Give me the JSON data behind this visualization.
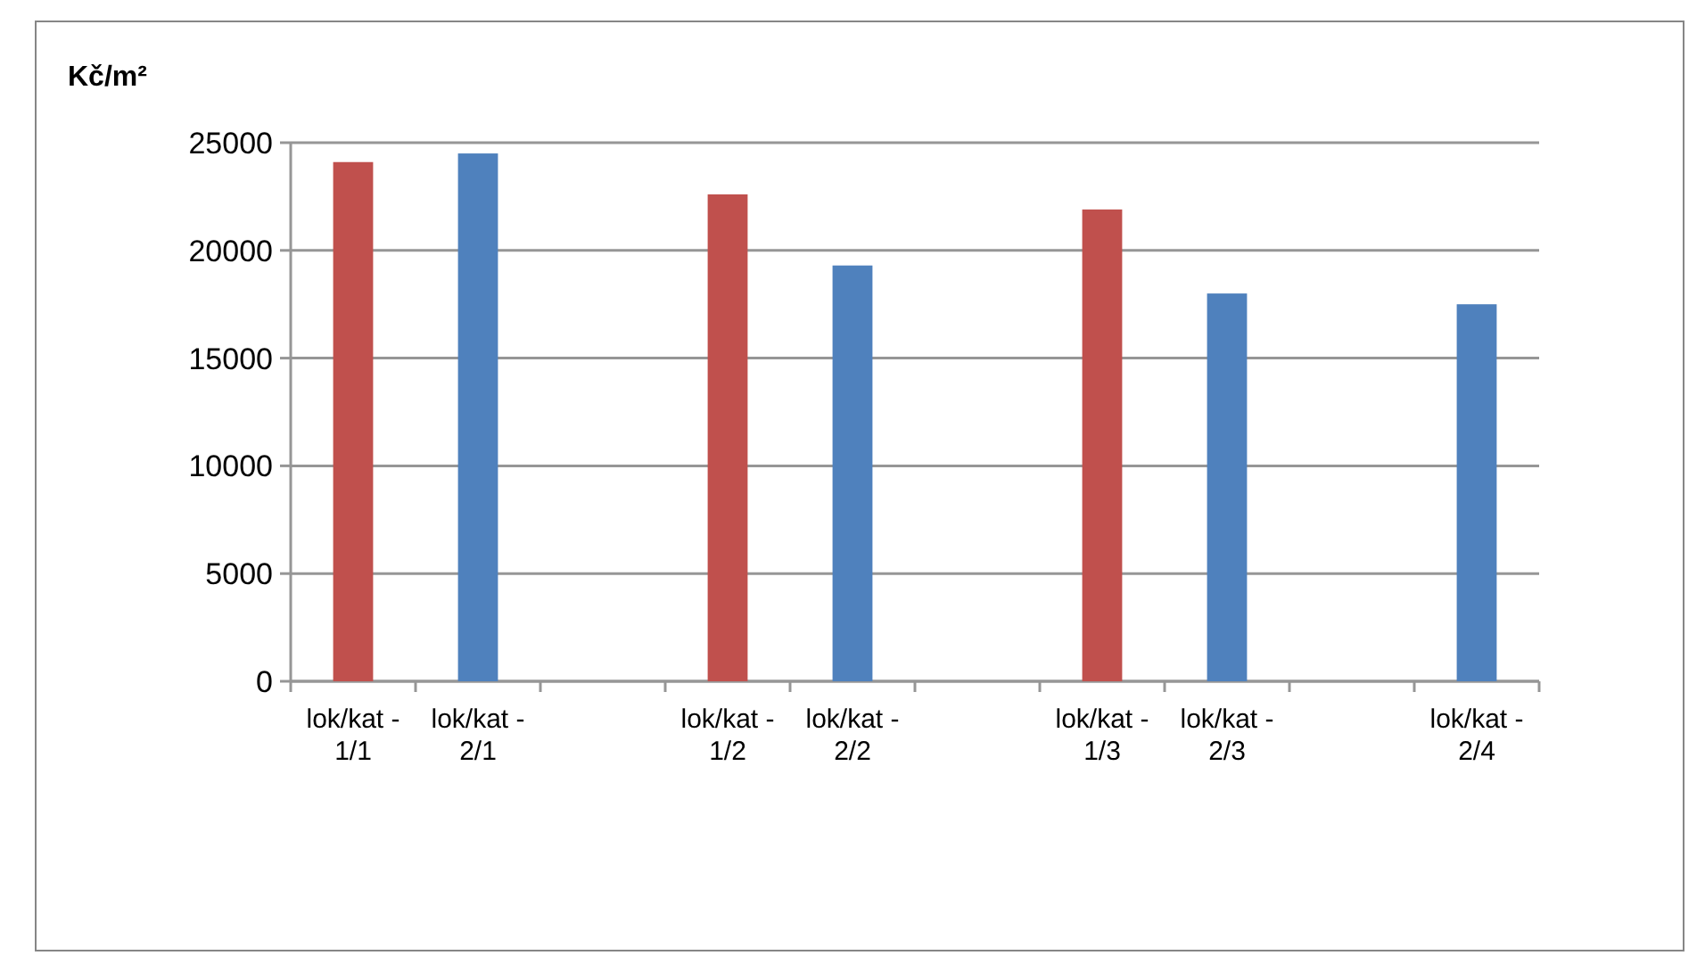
{
  "chart_data": {
    "type": "bar",
    "ylabel": "Kč/m²",
    "categories": [
      "lok/kat - 1/1",
      "lok/kat - 2/1",
      null,
      "lok/kat - 1/2",
      "lok/kat - 2/2",
      null,
      "lok/kat - 1/3",
      "lok/kat - 2/3",
      null,
      "lok/kat - 2/4"
    ],
    "series": [
      {
        "color": "#c0504d",
        "values": [
          24100,
          null,
          null,
          22600,
          null,
          null,
          21900,
          null,
          null,
          null
        ]
      },
      {
        "color": "#4f81bd",
        "values": [
          null,
          24500,
          null,
          null,
          19300,
          null,
          null,
          18000,
          null,
          17500
        ]
      }
    ],
    "ylim": [
      0,
      25000
    ],
    "yticks": [
      0,
      5000,
      10000,
      15000,
      20000,
      25000
    ],
    "grid": "y"
  }
}
